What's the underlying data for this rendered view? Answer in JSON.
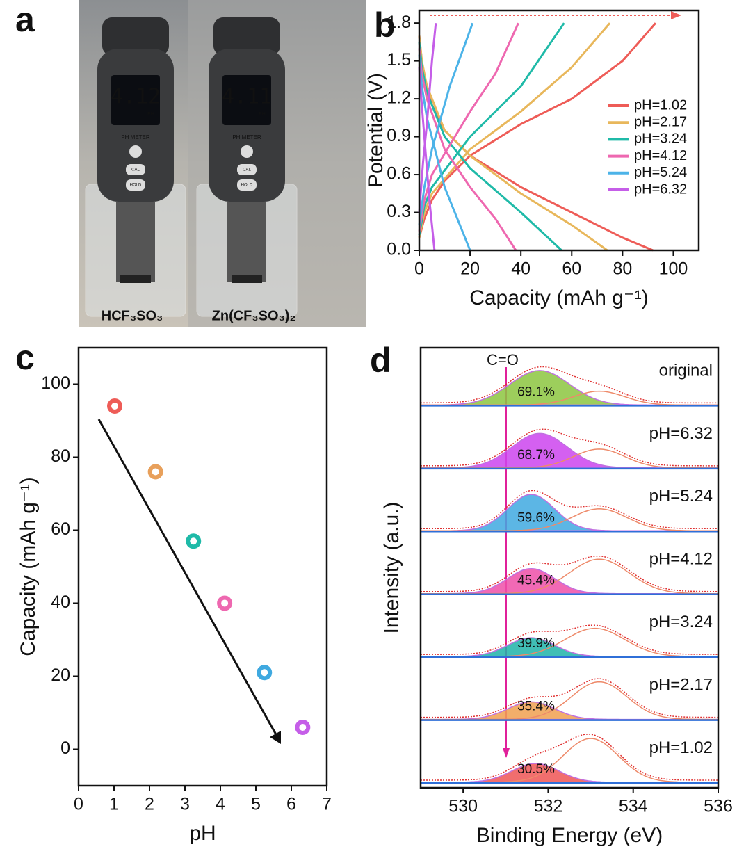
{
  "photo": {
    "panel_label": "a",
    "meters": [
      {
        "reading": "4.12",
        "unit": "PH",
        "brand": "PH METER",
        "buttons": [
          "CAL",
          "HOLD"
        ],
        "solution": "HCF₃SO₃"
      },
      {
        "reading": "4.11",
        "unit": "PH",
        "brand": "PH METER",
        "buttons": [
          "CAL",
          "HOLD"
        ],
        "solution": "Zn(CF₃SO₃)₂"
      }
    ]
  },
  "chart_data": [
    {
      "type": "line",
      "panel_label": "b",
      "xlabel": "Capacity (mAh g⁻¹)",
      "ylabel": "Potential (V)",
      "xlim": [
        0,
        110
      ],
      "xticks": [
        0,
        20,
        40,
        60,
        80,
        100
      ],
      "ylim": [
        0,
        1.9
      ],
      "yticks": [
        {
          "value": 0,
          "label": "0.0"
        },
        0.3,
        0.6,
        0.9,
        1.2,
        1.5,
        1.8
      ],
      "legend": "right",
      "series": [
        {
          "name": "pH=1.02",
          "color": "#ee5c57",
          "curves": [
            {
              "x": [
                0,
                1,
                2,
                5,
                10,
                20,
                40,
                60,
                80,
                92
              ],
              "values": [
                1.7,
                1.5,
                1.35,
                1.15,
                0.95,
                0.75,
                0.5,
                0.3,
                0.1,
                0
              ]
            },
            {
              "x": [
                0,
                2,
                5,
                10,
                20,
                40,
                60,
                80,
                93
              ],
              "values": [
                0.1,
                0.25,
                0.4,
                0.55,
                0.75,
                1.0,
                1.2,
                1.5,
                1.8
              ]
            }
          ]
        },
        {
          "name": "pH=2.17",
          "color": "#e8b75b",
          "curves": [
            {
              "x": [
                0,
                1,
                3,
                10,
                20,
                40,
                60,
                74
              ],
              "values": [
                1.7,
                1.5,
                1.3,
                0.95,
                0.75,
                0.45,
                0.2,
                0
              ]
            },
            {
              "x": [
                0,
                2,
                5,
                20,
                40,
                60,
                75
              ],
              "values": [
                0.1,
                0.3,
                0.45,
                0.8,
                1.1,
                1.45,
                1.8
              ]
            }
          ]
        },
        {
          "name": "pH=3.24",
          "color": "#1fbaa8",
          "curves": [
            {
              "x": [
                0,
                1,
                3,
                10,
                20,
                40,
                56
              ],
              "values": [
                1.65,
                1.45,
                1.25,
                0.9,
                0.65,
                0.3,
                0
              ]
            },
            {
              "x": [
                0,
                2,
                5,
                20,
                40,
                57
              ],
              "values": [
                0.12,
                0.35,
                0.5,
                0.9,
                1.3,
                1.8
              ]
            }
          ]
        },
        {
          "name": "pH=4.12",
          "color": "#ee68b0",
          "curves": [
            {
              "x": [
                0,
                1,
                3,
                10,
                20,
                30,
                38
              ],
              "values": [
                1.6,
                1.4,
                1.2,
                0.8,
                0.5,
                0.25,
                0
              ]
            },
            {
              "x": [
                0,
                2,
                5,
                20,
                30,
                39
              ],
              "values": [
                0.15,
                0.4,
                0.6,
                1.1,
                1.4,
                1.8
              ]
            }
          ]
        },
        {
          "name": "pH=5.24",
          "color": "#4cb3e8",
          "curves": [
            {
              "x": [
                0,
                1,
                3,
                10,
                15,
                20
              ],
              "values": [
                1.55,
                1.3,
                1.05,
                0.5,
                0.25,
                0
              ]
            },
            {
              "x": [
                0,
                2,
                5,
                12,
                21
              ],
              "values": [
                0.2,
                0.5,
                0.8,
                1.3,
                1.8
              ]
            }
          ]
        },
        {
          "name": "pH=6.32",
          "color": "#c55ee8",
          "curves": [
            {
              "x": [
                0,
                1,
                2,
                4,
                6
              ],
              "values": [
                1.45,
                1.15,
                0.9,
                0.4,
                0
              ]
            },
            {
              "x": [
                0,
                1.5,
                3,
                5,
                6.5
              ],
              "values": [
                0.3,
                0.7,
                1.0,
                1.5,
                1.8
              ]
            }
          ]
        }
      ]
    },
    {
      "type": "scatter",
      "panel_label": "c",
      "xlabel": "pH",
      "ylabel": "Capacity (mAh g⁻¹)",
      "x": [
        1.02,
        2.17,
        3.24,
        4.12,
        5.24,
        6.32
      ],
      "values": [
        94,
        76,
        57,
        40,
        21,
        6
      ],
      "colors": [
        "#ee5c57",
        "#e8a05b",
        "#1fbaa8",
        "#ee68b0",
        "#3fa9e0",
        "#c55ee8"
      ],
      "xlim": [
        0,
        7
      ],
      "xticks": [
        0,
        1,
        2,
        3,
        4,
        5,
        6,
        7
      ],
      "ylim": [
        -10,
        110
      ],
      "yticks": [
        0,
        20,
        40,
        60,
        80,
        100
      ]
    },
    {
      "type": "stacked_area",
      "panel_label": "d",
      "xlabel": "Binding Energy (eV)",
      "ylabel": "Intensity (a.u.)",
      "annotation": "C=O",
      "xlim": [
        529,
        536
      ],
      "xticks": [
        530,
        532,
        534,
        536
      ],
      "series": [
        {
          "name": "original",
          "color": "#8cc63f",
          "value_label": "69.1%",
          "peaks": [
            {
              "center": 531.8,
              "height": 0.55,
              "width": 0.7
            },
            {
              "center": 533.2,
              "height": 0.22,
              "width": 0.6
            }
          ]
        },
        {
          "name": "pH=6.32",
          "color": "#cc44ee",
          "value_label": "68.7%",
          "peaks": [
            {
              "center": 531.8,
              "height": 0.55,
              "width": 0.65
            },
            {
              "center": 533.2,
              "height": 0.3,
              "width": 0.6
            }
          ]
        },
        {
          "name": "pH=5.24",
          "color": "#3fa9e0",
          "value_label": "59.6%",
          "peaks": [
            {
              "center": 531.6,
              "height": 0.58,
              "width": 0.55
            },
            {
              "center": 533.2,
              "height": 0.35,
              "width": 0.65
            }
          ]
        },
        {
          "name": "pH=4.12",
          "color": "#ee4fa8",
          "value_label": "45.4%",
          "peaks": [
            {
              "center": 531.6,
              "height": 0.4,
              "width": 0.55
            },
            {
              "center": 533.2,
              "height": 0.55,
              "width": 0.7
            }
          ]
        },
        {
          "name": "pH=3.24",
          "color": "#1fb3a8",
          "value_label": "39.9%",
          "peaks": [
            {
              "center": 531.6,
              "height": 0.3,
              "width": 0.55
            },
            {
              "center": 533.1,
              "height": 0.45,
              "width": 0.7
            }
          ]
        },
        {
          "name": "pH=2.17",
          "color": "#f0a050",
          "value_label": "35.4%",
          "peaks": [
            {
              "center": 531.6,
              "height": 0.28,
              "width": 0.55
            },
            {
              "center": 533.2,
              "height": 0.6,
              "width": 0.65
            }
          ]
        },
        {
          "name": "pH=1.02",
          "color": "#ee5555",
          "value_label": "30.5%",
          "peaks": [
            {
              "center": 531.7,
              "height": 0.3,
              "width": 0.55
            },
            {
              "center": 533.0,
              "height": 0.7,
              "width": 0.65
            }
          ]
        }
      ]
    }
  ]
}
